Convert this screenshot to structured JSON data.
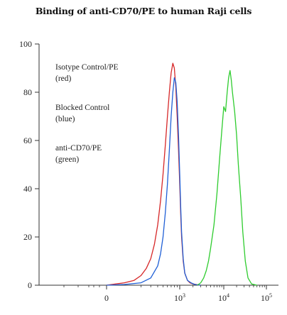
{
  "chart_data": {
    "type": "line",
    "title": "Binding of anti-CD70/PE to human Raji cells",
    "xlabel": "",
    "ylabel": "",
    "x_scale": "biexponential (log above 10^2)",
    "ylim": [
      0,
      100
    ],
    "y_ticks": [
      {
        "value": 0,
        "label": "0"
      },
      {
        "value": 20,
        "label": "20"
      },
      {
        "value": 40,
        "label": "40"
      },
      {
        "value": 60,
        "label": "60"
      },
      {
        "value": 80,
        "label": "80"
      },
      {
        "value": 100,
        "label": "100"
      }
    ],
    "x_ticks": [
      {
        "value": 0,
        "label": "0",
        "exp": ""
      },
      {
        "value": 1000,
        "label": "10",
        "exp": "3"
      },
      {
        "value": 10000,
        "label": "10",
        "exp": "4"
      },
      {
        "value": 100000,
        "label": "10",
        "exp": "5"
      }
    ],
    "legend_position": "top-left",
    "legend": [
      {
        "line1": "Isotype Control/PE",
        "line2": "(red)",
        "color": "#d62728"
      },
      {
        "line1": "Blocked Control",
        "line2": "(blue)",
        "color": "#1f5fd6"
      },
      {
        "line1": "anti-CD70/PE",
        "line2": "(green)",
        "color": "#2ecc2e"
      }
    ],
    "series": [
      {
        "color": "#d62728",
        "x": [
          0,
          50,
          100,
          150,
          200,
          250,
          300,
          350,
          400,
          450,
          500,
          550,
          600,
          650,
          700,
          750,
          800,
          850,
          900,
          950,
          1000,
          1050,
          1100,
          1200,
          1300,
          1500,
          1700,
          2000,
          2500,
          3000
        ],
        "y": [
          0,
          0.5,
          1,
          2,
          4,
          7,
          11,
          17,
          25,
          35,
          46,
          58,
          70,
          80,
          88,
          92,
          90,
          82,
          70,
          56,
          42,
          30,
          20,
          10,
          5,
          2,
          1,
          0.5,
          0.2,
          0
        ]
      },
      {
        "color": "#1f5fd6",
        "x": [
          0,
          100,
          200,
          300,
          400,
          450,
          500,
          550,
          600,
          650,
          700,
          750,
          800,
          850,
          900,
          950,
          1000,
          1050,
          1100,
          1200,
          1300,
          1500,
          1800,
          2200,
          3000
        ],
        "y": [
          0,
          0.3,
          1,
          3,
          8,
          13,
          20,
          30,
          42,
          56,
          70,
          80,
          86,
          84,
          76,
          62,
          46,
          33,
          22,
          11,
          5,
          2,
          1,
          0.3,
          0
        ]
      },
      {
        "color": "#2ecc2e",
        "x": [
          2500,
          3000,
          3500,
          4000,
          4500,
          5000,
          6000,
          7000,
          8000,
          9000,
          10000,
          11000,
          12000,
          13000,
          14000,
          15000,
          16000,
          18000,
          20000,
          22000,
          25000,
          28000,
          32000,
          37000,
          45000,
          60000
        ],
        "y": [
          0,
          1,
          3,
          6,
          10,
          15,
          25,
          38,
          52,
          64,
          74,
          72,
          80,
          86,
          89,
          85,
          80,
          72,
          62,
          50,
          36,
          22,
          10,
          3,
          0.5,
          0
        ]
      }
    ]
  }
}
